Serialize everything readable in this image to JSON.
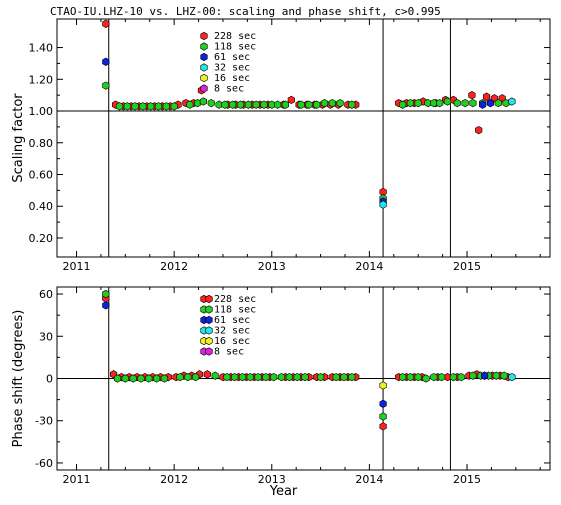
{
  "chart_data": [
    {
      "type": "scatter",
      "title": "CTAO-IU.LHZ-10 vs. LHZ-00: scaling and phase shift, c>0.995",
      "xlabel": "",
      "ylabel": "Scaling factor",
      "xlim": [
        2010.8,
        2015.85
      ],
      "ylim": [
        0.08,
        1.58
      ],
      "x_ticks": [
        2011,
        2012,
        2013,
        2014,
        2015
      ],
      "x_tick_labels": [
        "2011",
        "2012",
        "2013",
        "2014",
        "2015"
      ],
      "y_ticks": [
        0.2,
        0.4,
        0.6,
        0.8,
        1.0,
        1.2,
        1.4
      ],
      "y_tick_labels": [
        "0.20",
        "0.40",
        "0.60",
        "0.80",
        "1.00",
        "1.20",
        "1.40"
      ],
      "hline": 1.0,
      "vlines": [
        2011.33,
        2014.14,
        2014.83
      ],
      "legend_position": "top-center",
      "series": [
        {
          "name": "228 sec",
          "color": "#ff2020",
          "points": [
            [
              2011.3,
              1.55
            ],
            [
              2011.4,
              1.04
            ],
            [
              2011.48,
              1.03
            ],
            [
              2011.56,
              1.03
            ],
            [
              2011.64,
              1.03
            ],
            [
              2011.72,
              1.03
            ],
            [
              2011.8,
              1.03
            ],
            [
              2011.88,
              1.03
            ],
            [
              2011.96,
              1.03
            ],
            [
              2012.04,
              1.04
            ],
            [
              2012.12,
              1.05
            ],
            [
              2012.2,
              1.05
            ],
            [
              2012.28,
              1.13
            ],
            [
              2012.55,
              1.04
            ],
            [
              2012.63,
              1.04
            ],
            [
              2012.71,
              1.04
            ],
            [
              2012.8,
              1.04
            ],
            [
              2012.88,
              1.04
            ],
            [
              2012.96,
              1.04
            ],
            [
              2013.12,
              1.04
            ],
            [
              2013.2,
              1.07
            ],
            [
              2013.28,
              1.04
            ],
            [
              2013.36,
              1.04
            ],
            [
              2013.44,
              1.04
            ],
            [
              2013.52,
              1.04
            ],
            [
              2013.6,
              1.04
            ],
            [
              2013.68,
              1.04
            ],
            [
              2013.78,
              1.04
            ],
            [
              2013.86,
              1.04
            ],
            [
              2014.14,
              0.49
            ],
            [
              2014.3,
              1.05
            ],
            [
              2014.38,
              1.05
            ],
            [
              2014.46,
              1.05
            ],
            [
              2014.55,
              1.06
            ],
            [
              2014.68,
              1.05
            ],
            [
              2014.78,
              1.07
            ],
            [
              2014.86,
              1.07
            ],
            [
              2015.05,
              1.1
            ],
            [
              2015.12,
              0.88
            ],
            [
              2015.2,
              1.09
            ],
            [
              2015.28,
              1.08
            ],
            [
              2015.36,
              1.08
            ]
          ]
        },
        {
          "name": "118 sec",
          "color": "#20d020",
          "points": [
            [
              2011.3,
              1.16
            ],
            [
              2011.44,
              1.03
            ],
            [
              2011.52,
              1.03
            ],
            [
              2011.6,
              1.03
            ],
            [
              2011.68,
              1.03
            ],
            [
              2011.76,
              1.03
            ],
            [
              2011.84,
              1.03
            ],
            [
              2011.92,
              1.03
            ],
            [
              2012.0,
              1.03
            ],
            [
              2012.16,
              1.04
            ],
            [
              2012.24,
              1.05
            ],
            [
              2012.3,
              1.06
            ],
            [
              2012.38,
              1.05
            ],
            [
              2012.46,
              1.04
            ],
            [
              2012.52,
              1.04
            ],
            [
              2012.6,
              1.04
            ],
            [
              2012.68,
              1.04
            ],
            [
              2012.76,
              1.04
            ],
            [
              2012.84,
              1.04
            ],
            [
              2012.92,
              1.04
            ],
            [
              2013.0,
              1.04
            ],
            [
              2013.06,
              1.04
            ],
            [
              2013.14,
              1.04
            ],
            [
              2013.3,
              1.04
            ],
            [
              2013.38,
              1.04
            ],
            [
              2013.46,
              1.04
            ],
            [
              2013.54,
              1.05
            ],
            [
              2013.62,
              1.05
            ],
            [
              2013.7,
              1.05
            ],
            [
              2013.82,
              1.04
            ],
            [
              2014.14,
              0.45
            ],
            [
              2014.34,
              1.04
            ],
            [
              2014.42,
              1.05
            ],
            [
              2014.5,
              1.05
            ],
            [
              2014.6,
              1.05
            ],
            [
              2014.66,
              1.05
            ],
            [
              2014.72,
              1.05
            ],
            [
              2014.8,
              1.06
            ],
            [
              2014.9,
              1.05
            ],
            [
              2014.98,
              1.05
            ],
            [
              2015.06,
              1.05
            ],
            [
              2015.16,
              1.05
            ],
            [
              2015.24,
              1.05
            ],
            [
              2015.32,
              1.05
            ],
            [
              2015.4,
              1.05
            ]
          ]
        },
        {
          "name": "61 sec",
          "color": "#1020e0",
          "points": [
            [
              2011.3,
              1.31
            ],
            [
              2014.14,
              0.43
            ],
            [
              2015.16,
              1.04
            ],
            [
              2015.24,
              1.05
            ]
          ]
        },
        {
          "name": "32 sec",
          "color": "#20e8e8",
          "points": [
            [
              2014.14,
              0.41
            ],
            [
              2015.46,
              1.06
            ]
          ]
        },
        {
          "name": "16 sec",
          "color": "#f0f020",
          "points": []
        },
        {
          "name": "8 sec",
          "color": "#e020e0",
          "points": []
        }
      ]
    },
    {
      "type": "scatter",
      "xlabel": "Year",
      "ylabel": "Phase shift (degrees)",
      "xlim": [
        2010.8,
        2015.85
      ],
      "ylim": [
        -65,
        65
      ],
      "x_ticks": [
        2011,
        2012,
        2013,
        2014,
        2015
      ],
      "x_tick_labels": [
        "2011",
        "2012",
        "2013",
        "2014",
        "2015"
      ],
      "y_ticks": [
        -60,
        -30,
        0,
        30,
        60
      ],
      "y_tick_labels": [
        "-60",
        "-30",
        "0",
        "30",
        "60"
      ],
      "hline": 0,
      "vlines": [
        2011.33,
        2014.14,
        2014.83
      ],
      "legend_position": "top-center",
      "series": [
        {
          "name": "228 sec",
          "color": "#ff2020",
          "points": [
            [
              2011.3,
              57
            ],
            [
              2011.38,
              3
            ],
            [
              2011.46,
              1
            ],
            [
              2011.54,
              1
            ],
            [
              2011.62,
              1
            ],
            [
              2011.7,
              1
            ],
            [
              2011.78,
              1
            ],
            [
              2011.86,
              1
            ],
            [
              2011.94,
              1
            ],
            [
              2012.02,
              1
            ],
            [
              2012.1,
              2
            ],
            [
              2012.18,
              2
            ],
            [
              2012.26,
              3
            ],
            [
              2012.34,
              3
            ],
            [
              2012.5,
              1
            ],
            [
              2012.58,
              1
            ],
            [
              2012.66,
              1
            ],
            [
              2012.74,
              1
            ],
            [
              2012.82,
              1
            ],
            [
              2012.9,
              1
            ],
            [
              2012.98,
              1
            ],
            [
              2013.14,
              1
            ],
            [
              2013.22,
              1
            ],
            [
              2013.3,
              1
            ],
            [
              2013.38,
              1
            ],
            [
              2013.46,
              1
            ],
            [
              2013.54,
              1
            ],
            [
              2013.62,
              1
            ],
            [
              2013.7,
              1
            ],
            [
              2013.78,
              1
            ],
            [
              2013.86,
              1
            ],
            [
              2014.14,
              -34
            ],
            [
              2014.3,
              1
            ],
            [
              2014.38,
              1
            ],
            [
              2014.46,
              1
            ],
            [
              2014.54,
              1
            ],
            [
              2014.7,
              1
            ],
            [
              2014.8,
              1
            ],
            [
              2014.9,
              1
            ],
            [
              2015.02,
              2
            ],
            [
              2015.1,
              3
            ],
            [
              2015.18,
              2
            ],
            [
              2015.26,
              2
            ],
            [
              2015.34,
              2
            ],
            [
              2015.42,
              1
            ]
          ]
        },
        {
          "name": "118 sec",
          "color": "#20d020",
          "points": [
            [
              2011.3,
              60
            ],
            [
              2011.42,
              0
            ],
            [
              2011.5,
              0
            ],
            [
              2011.58,
              0
            ],
            [
              2011.66,
              0
            ],
            [
              2011.74,
              0
            ],
            [
              2011.82,
              0
            ],
            [
              2011.9,
              0
            ],
            [
              2012.06,
              1
            ],
            [
              2012.14,
              1
            ],
            [
              2012.22,
              1
            ],
            [
              2012.42,
              2
            ],
            [
              2012.54,
              1
            ],
            [
              2012.62,
              1
            ],
            [
              2012.7,
              1
            ],
            [
              2012.78,
              1
            ],
            [
              2012.86,
              1
            ],
            [
              2012.94,
              1
            ],
            [
              2013.02,
              1
            ],
            [
              2013.1,
              1
            ],
            [
              2013.18,
              1
            ],
            [
              2013.26,
              1
            ],
            [
              2013.34,
              1
            ],
            [
              2013.5,
              1
            ],
            [
              2013.66,
              1
            ],
            [
              2013.74,
              1
            ],
            [
              2013.82,
              1
            ],
            [
              2014.14,
              -27
            ],
            [
              2014.34,
              1
            ],
            [
              2014.42,
              1
            ],
            [
              2014.5,
              1
            ],
            [
              2014.58,
              0
            ],
            [
              2014.66,
              1
            ],
            [
              2014.74,
              1
            ],
            [
              2014.86,
              1
            ],
            [
              2014.94,
              1
            ],
            [
              2015.06,
              2
            ],
            [
              2015.14,
              2
            ],
            [
              2015.22,
              2
            ],
            [
              2015.3,
              2
            ],
            [
              2015.38,
              2
            ]
          ]
        },
        {
          "name": "61 sec",
          "color": "#1020e0",
          "points": [
            [
              2011.3,
              52
            ],
            [
              2014.14,
              -18
            ],
            [
              2015.18,
              2
            ]
          ]
        },
        {
          "name": "32 sec",
          "color": "#20e8e8",
          "points": [
            [
              2015.46,
              1
            ]
          ]
        },
        {
          "name": "16 sec",
          "color": "#f0f020",
          "points": [
            [
              2014.14,
              -5
            ]
          ]
        },
        {
          "name": "8 sec",
          "color": "#e020e0",
          "points": []
        }
      ]
    }
  ]
}
